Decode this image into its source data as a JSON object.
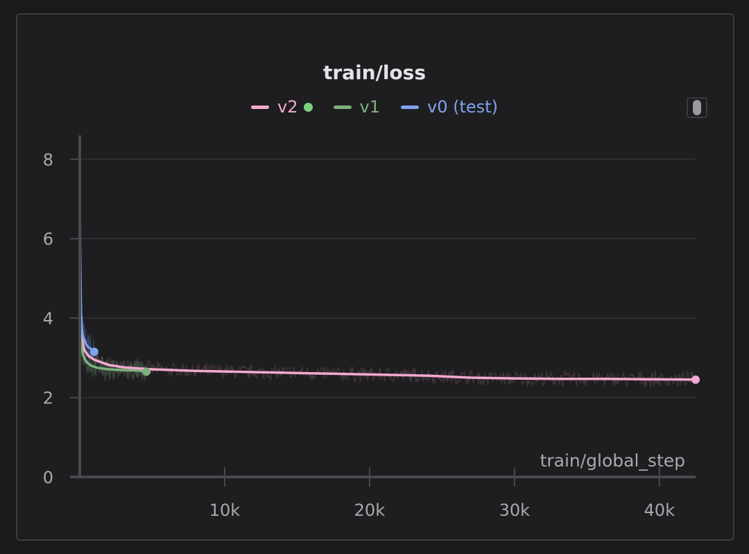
{
  "chart_data": {
    "type": "line",
    "title": "train/loss",
    "xlabel": "train/global_step",
    "ylabel": "",
    "xlim": [
      0,
      42500
    ],
    "ylim": [
      0,
      8.6
    ],
    "x_ticks": [
      {
        "value": 10000,
        "label": "10k"
      },
      {
        "value": 20000,
        "label": "20k"
      },
      {
        "value": 30000,
        "label": "30k"
      },
      {
        "value": 40000,
        "label": "40k"
      }
    ],
    "y_ticks": [
      {
        "value": 0,
        "label": "0"
      },
      {
        "value": 2,
        "label": "2"
      },
      {
        "value": 4,
        "label": "4"
      },
      {
        "value": 6,
        "label": "6"
      },
      {
        "value": 8,
        "label": "8"
      }
    ],
    "grid": true,
    "legend_position": "top-center",
    "series": [
      {
        "name": "v2",
        "color": "#f5a9d0",
        "end_marker": true,
        "x": [
          0,
          60,
          150,
          300,
          600,
          1000,
          2000,
          3000,
          5000,
          8000,
          12000,
          16000,
          20000,
          24000,
          27000,
          30000,
          33000,
          36000,
          39000,
          42500
        ],
        "y": [
          5.0,
          4.0,
          3.5,
          3.2,
          3.05,
          2.95,
          2.82,
          2.76,
          2.71,
          2.67,
          2.64,
          2.61,
          2.58,
          2.55,
          2.5,
          2.48,
          2.47,
          2.47,
          2.46,
          2.45
        ]
      },
      {
        "name": "v1",
        "color": "#7fb07f",
        "end_marker": true,
        "x": [
          0,
          50,
          150,
          300,
          500,
          800,
          1200,
          2000,
          3000,
          4000,
          4600
        ],
        "y": [
          3.9,
          3.5,
          3.2,
          3.0,
          2.88,
          2.8,
          2.75,
          2.71,
          2.69,
          2.68,
          2.65
        ]
      },
      {
        "name": "v0 (test)",
        "color": "#7fa3ee",
        "end_marker": true,
        "x": [
          0,
          20,
          40,
          60,
          80,
          100,
          130,
          160,
          200,
          260,
          330,
          420,
          520,
          650,
          800,
          1000
        ],
        "y": [
          7.9,
          6.8,
          5.7,
          5.0,
          4.5,
          4.1,
          3.9,
          3.7,
          3.6,
          3.5,
          3.45,
          3.35,
          3.3,
          3.25,
          3.22,
          3.15
        ]
      }
    ]
  }
}
